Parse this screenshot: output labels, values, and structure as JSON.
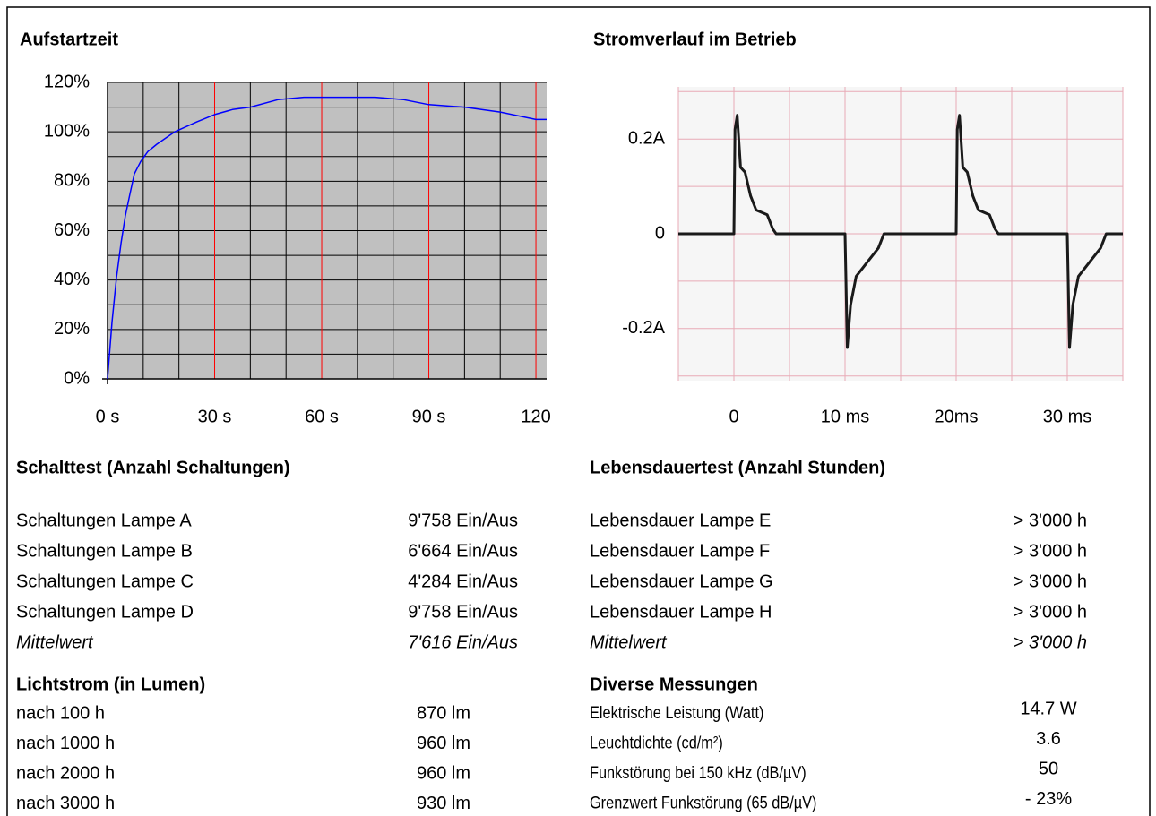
{
  "chart_data": [
    {
      "type": "line",
      "title": "Aufstartzeit",
      "x": [
        0,
        1.25,
        2.5,
        3.8,
        5,
        6.3,
        7.5,
        9.3,
        11.3,
        13.8,
        18.8,
        25,
        30,
        35,
        40,
        47.7,
        55,
        75,
        83,
        90,
        100,
        110,
        120,
        123
      ],
      "values": [
        0,
        23,
        41,
        55,
        66,
        75,
        83,
        88,
        92,
        95,
        100,
        104,
        107,
        109,
        110,
        113,
        114,
        114,
        113,
        111,
        110,
        108,
        105,
        105
      ],
      "color": "#0000ff",
      "xlim": [
        0,
        123
      ],
      "xticks": [
        {
          "value": 0,
          "label": "0 s"
        },
        {
          "value": 30,
          "label": "30 s"
        },
        {
          "value": 60,
          "label": "60 s"
        },
        {
          "value": 90,
          "label": "90 s"
        },
        120
      ],
      "ylim": [
        0,
        120
      ],
      "yticks": [
        {
          "value": 0,
          "label": "0%"
        },
        {
          "value": 20,
          "label": "20%"
        },
        {
          "value": 40,
          "label": "40%"
        },
        {
          "value": 60,
          "label": "60%"
        },
        {
          "value": 80,
          "label": "80%"
        },
        {
          "value": 100,
          "label": "100%"
        },
        {
          "value": 120,
          "label": "120%"
        }
      ],
      "minor_xticks": [
        10,
        20,
        40,
        50,
        70,
        80,
        100,
        110
      ],
      "minor_yticks": [
        10,
        30,
        50,
        70,
        90,
        110
      ],
      "background": "#c0c0c0",
      "xgrid_color": "#ff0000",
      "ygrid_color": "#000000",
      "minor_grid_color": "#000000"
    },
    {
      "type": "line",
      "title": "Stromverlauf im Betrieb",
      "x": [
        -5,
        0,
        0.1,
        0.3,
        0.6,
        1,
        1.5,
        2,
        3,
        3.5,
        3.8,
        10,
        10.2,
        10.5,
        11,
        12,
        13,
        13.5,
        20,
        20.1,
        20.3,
        20.6,
        21,
        21.5,
        22,
        23,
        23.5,
        23.8,
        30,
        30.2,
        30.5,
        31,
        32,
        33,
        33.5,
        35
      ],
      "values": [
        0,
        0,
        0.22,
        0.25,
        0.14,
        0.13,
        0.08,
        0.05,
        0.04,
        0.01,
        0,
        0,
        -0.24,
        -0.15,
        -0.09,
        -0.06,
        -0.03,
        0,
        0,
        0.22,
        0.25,
        0.14,
        0.13,
        0.08,
        0.05,
        0.04,
        0.01,
        0,
        0,
        -0.24,
        -0.15,
        -0.09,
        -0.06,
        -0.03,
        0,
        0
      ],
      "color": "#1a1a1a",
      "xlim": [
        -5,
        35
      ],
      "xticks": [
        0,
        {
          "value": 10,
          "label": "10 ms"
        },
        {
          "value": 20,
          "label": "20ms"
        },
        {
          "value": 30,
          "label": "30 ms"
        }
      ],
      "ylim": [
        -0.31,
        0.31
      ],
      "yticks": [
        {
          "value": -0.2,
          "label": "-0.2A"
        },
        0,
        {
          "value": 0.2,
          "label": "0.2A"
        }
      ],
      "minor_xticks": [
        -5,
        5,
        15,
        25,
        35
      ],
      "minor_yticks": [
        -0.3,
        -0.1,
        0.1,
        0.3
      ],
      "background": "#f6f6f6",
      "xgrid_color": "#e8aab6",
      "ygrid_color": "#e8aab6",
      "minor_grid_color": "#e8aab6"
    }
  ],
  "sections": [
    {
      "title": "Schalttest (Anzahl Schaltungen)",
      "rows": [
        [
          "Schaltungen Lampe A",
          "9'758 Ein/Aus"
        ],
        [
          "Schaltungen Lampe B",
          "6'664 Ein/Aus"
        ],
        [
          "Schaltungen Lampe C",
          "4'284 Ein/Aus"
        ],
        [
          "Schaltungen Lampe D",
          "9'758 Ein/Aus"
        ]
      ],
      "summary": [
        "Mittelwert",
        "7'616 Ein/Aus"
      ]
    },
    {
      "title": "Lebensdauertest (Anzahl Stunden)",
      "rows": [
        [
          "Lebensdauer Lampe E",
          "> 3'000 h"
        ],
        [
          "Lebensdauer Lampe F",
          "> 3'000 h"
        ],
        [
          "Lebensdauer Lampe G",
          "> 3'000 h"
        ],
        [
          "Lebensdauer Lampe H",
          "> 3'000 h"
        ]
      ],
      "summary": [
        "Mittelwert",
        "> 3'000 h"
      ]
    },
    {
      "title": "Lichtstrom (in Lumen)",
      "rows": [
        [
          "nach 100 h",
          "870 lm"
        ],
        [
          "nach 1000 h",
          "960 lm"
        ],
        [
          "nach 2000 h",
          "960 lm"
        ],
        [
          "nach 3000 h",
          "930 lm"
        ]
      ]
    },
    {
      "title": "Diverse Messungen",
      "rows": [
        [
          "Elektrische Leistung (Watt)",
          "14.7 W"
        ],
        [
          "Leuchtdichte (cd/m²)",
          "3.6"
        ],
        [
          "Funkstörung bei 150 kHz (dB/µV)",
          "50"
        ],
        [
          "Grenzwert Funkstörung (65 dB/µV)",
          "- 23%"
        ]
      ]
    }
  ]
}
